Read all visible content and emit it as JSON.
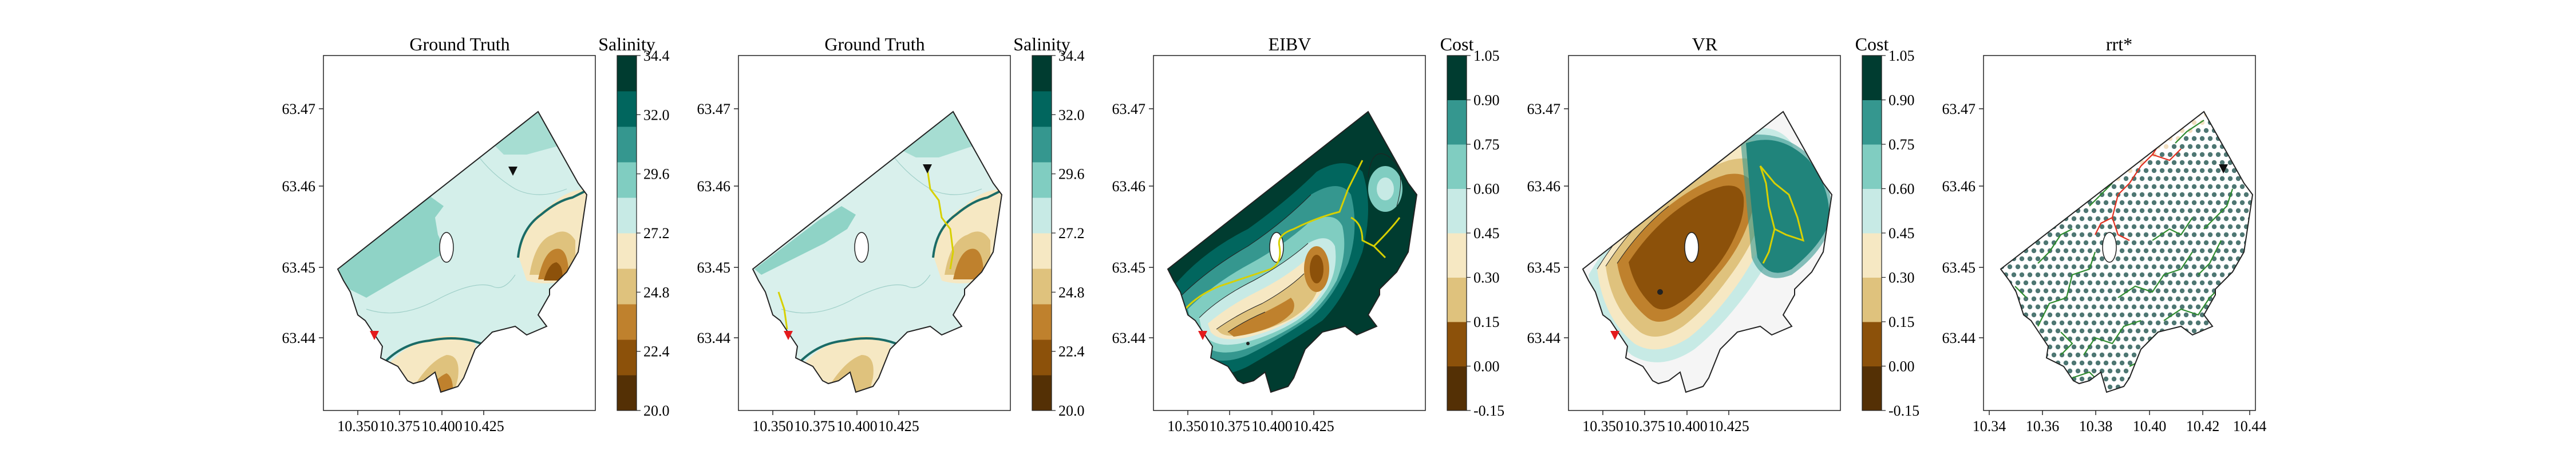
{
  "figure": {
    "panel_count": 5
  },
  "colors": {
    "brbg": [
      "#543005",
      "#8c510a",
      "#bf812d",
      "#dfc27d",
      "#f6e8c3",
      "#f5f5f5",
      "#c7eae5",
      "#80cdc1",
      "#35978f",
      "#01665e",
      "#003c30"
    ],
    "outline": "#222222",
    "front_line": "#1a6b66",
    "path_yellow": "#d7d000",
    "rrt_red": "#e03020",
    "rrt_green": "#2e8b2e",
    "node_dark": "#2f5f5a",
    "node_light": "#e9c99a",
    "marker_start": "#e41a1c",
    "marker_end": "#111111"
  },
  "chart_data": [
    {
      "type": "heatmap",
      "title": "Ground Truth",
      "colorbar_label": "Salinity",
      "colorbar_ticks": [
        "20.0",
        "22.4",
        "24.8",
        "27.2",
        "29.6",
        "32.0",
        "34.4"
      ],
      "x_ticks": [
        "10.350",
        "10.375",
        "10.400",
        "10.425"
      ],
      "y_ticks": [
        "63.44",
        "63.45",
        "63.46",
        "63.47"
      ],
      "markers": [
        "start-red-triangle",
        "end-black-triangle"
      ]
    },
    {
      "type": "heatmap",
      "title": "Ground Truth",
      "colorbar_label": "Salinity",
      "colorbar_ticks": [
        "20.0",
        "22.4",
        "24.8",
        "27.2",
        "29.6",
        "32.0",
        "34.4"
      ],
      "x_ticks": [
        "10.350",
        "10.375",
        "10.400",
        "10.425"
      ],
      "y_ticks": [
        "63.44",
        "63.45",
        "63.46",
        "63.47"
      ],
      "markers": [
        "start-red-triangle",
        "end-black-triangle"
      ]
    },
    {
      "type": "heatmap",
      "title": "EIBV",
      "colorbar_label": "Cost",
      "colorbar_ticks": [
        "-0.15",
        "0.00",
        "0.15",
        "0.30",
        "0.45",
        "0.60",
        "0.75",
        "0.90",
        "1.05"
      ],
      "x_ticks": [
        "10.350",
        "10.375",
        "10.400",
        "10.425"
      ],
      "y_ticks": [
        "63.44",
        "63.45",
        "63.46",
        "63.47"
      ],
      "markers": [
        "start-red-triangle"
      ]
    },
    {
      "type": "heatmap",
      "title": "VR",
      "colorbar_label": "Cost",
      "colorbar_ticks": [
        "-0.15",
        "0.00",
        "0.15",
        "0.30",
        "0.45",
        "0.60",
        "0.75",
        "0.90",
        "1.05"
      ],
      "x_ticks": [
        "10.350",
        "10.375",
        "10.400",
        "10.425"
      ],
      "y_ticks": [
        "63.44",
        "63.45",
        "63.46",
        "63.47"
      ],
      "markers": [
        "start-red-triangle"
      ]
    },
    {
      "type": "scatter",
      "title": "rrt*",
      "x_ticks": [
        "10.34",
        "10.36",
        "10.38",
        "10.40",
        "10.42",
        "10.44"
      ],
      "y_ticks": [
        "63.44",
        "63.45",
        "63.46",
        "63.47"
      ],
      "markers": [
        "end-black-triangle"
      ]
    }
  ]
}
